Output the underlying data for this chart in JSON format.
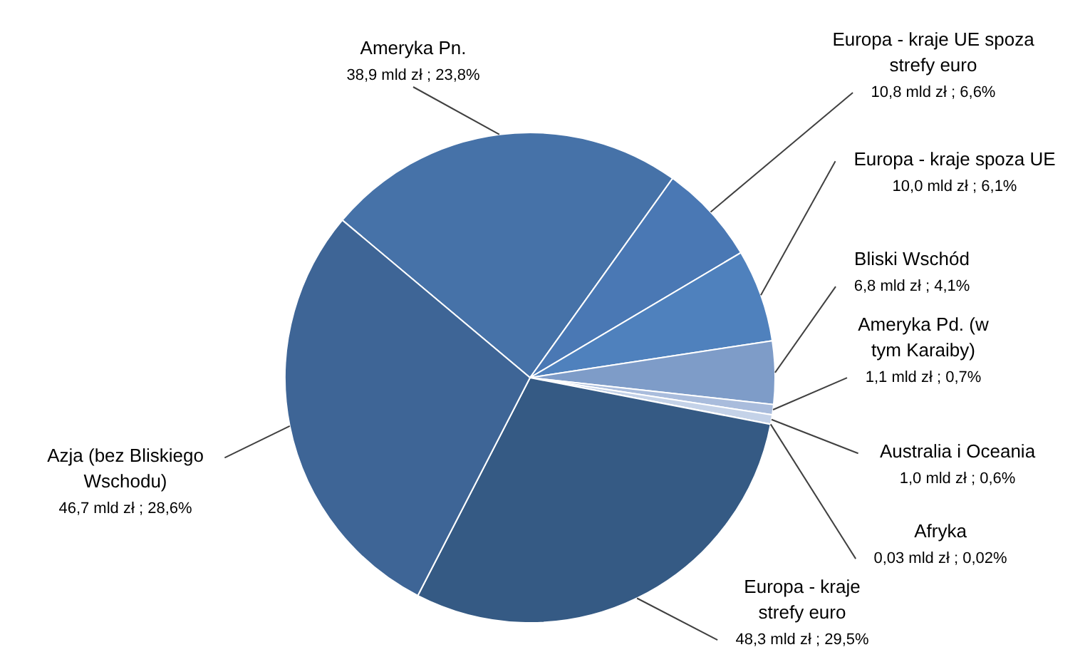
{
  "chart_data": {
    "type": "pie",
    "categories": [
      "Ameryka Pn.",
      "Europa - kraje UE spoza strefy euro",
      "Europa - kraje spoza UE",
      "Bliski Wschód",
      "Ameryka Pd. (w tym Karaiby)",
      "Australia i Oceania",
      "Afryka",
      "Europa - kraje strefy euro",
      "Azja (bez Bliskiego Wschodu)"
    ],
    "values": [
      38.9,
      10.8,
      10.0,
      6.8,
      1.1,
      1.0,
      0.03,
      48.3,
      46.7
    ],
    "value_labels": [
      "38,9 mld zł ; 23,8%",
      "10,8 mld zł ; 6,6%",
      "10,0 mld zł ; 6,1%",
      "6,8 mld zł ; 4,1%",
      "1,1 mld zł ; 0,7%",
      "1,0 mld zł ; 0,6%",
      "0,03 mld zł ; 0,02%",
      "48,3 mld zł ; 29,5%",
      "46,7 mld zł ; 28,6%"
    ],
    "colors": [
      "#4672a8",
      "#4a78b4",
      "#4f81bd",
      "#7e9cc8",
      "#a9bcdc",
      "#c4d2e8",
      "#d8e2f0",
      "#355a84",
      "#3e6596"
    ]
  }
}
